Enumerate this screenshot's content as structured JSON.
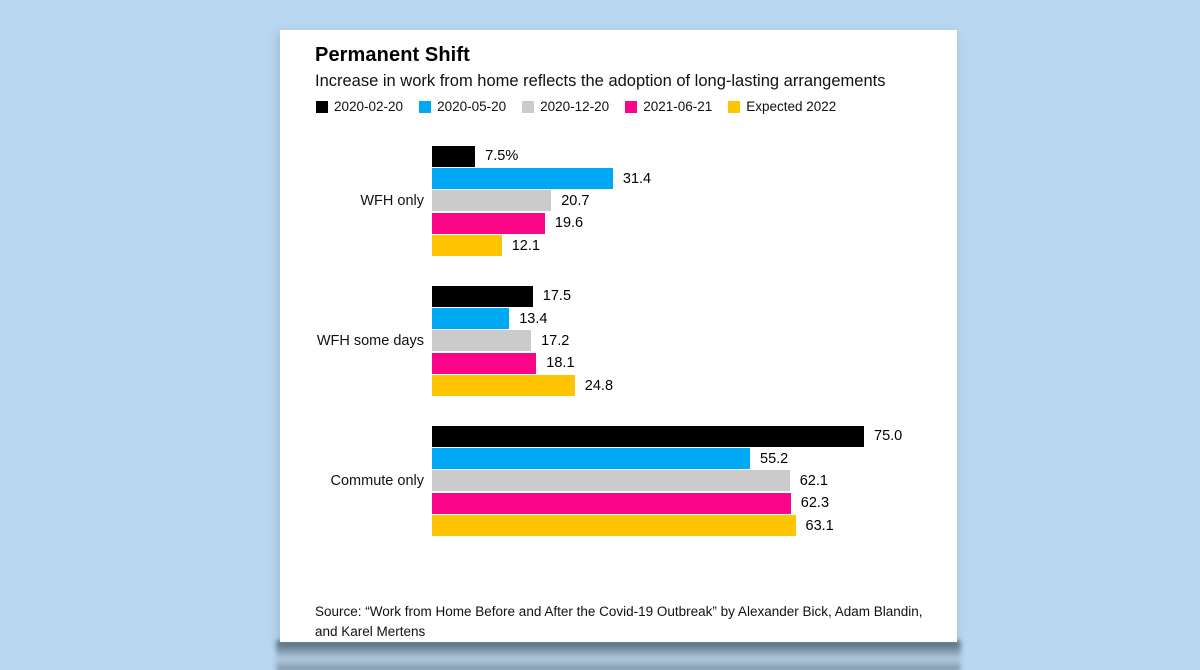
{
  "chart_data": {
    "type": "bar",
    "orientation": "horizontal",
    "title": "Permanent Shift",
    "subtitle": "Increase in work from home reflects the adoption of long-lasting arrangements",
    "legend_position": "top",
    "grid": false,
    "xlim": [
      0,
      78
    ],
    "categories": [
      "WFH only",
      "WFH some days",
      "Commute only"
    ],
    "series": [
      {
        "name": "2020-02-20",
        "color": "#000000",
        "values": [
          7.5,
          17.5,
          75.0
        ],
        "labels": [
          "7.5%",
          "17.5",
          "75.0"
        ]
      },
      {
        "name": "2020-05-20",
        "color": "#00a9f4",
        "values": [
          31.4,
          13.4,
          55.2
        ],
        "labels": [
          "31.4",
          "13.4",
          "55.2"
        ]
      },
      {
        "name": "2020-12-20",
        "color": "#cbcbcb",
        "values": [
          20.7,
          17.2,
          62.1
        ],
        "labels": [
          "20.7",
          "17.2",
          "62.1"
        ]
      },
      {
        "name": "2021-06-21",
        "color": "#fc0689",
        "values": [
          19.6,
          18.1,
          62.3
        ],
        "labels": [
          "19.6",
          "18.1",
          "62.3"
        ]
      },
      {
        "name": "Expected 2022",
        "color": "#ffc402",
        "values": [
          12.1,
          24.8,
          63.1
        ],
        "labels": [
          "12.1",
          "24.8",
          "63.1"
        ]
      }
    ],
    "source_lines": [
      "Source: “Work from Home Before and After the Covid-19 Outbreak” by Alexander Bick, Adam Blandin,",
      "and Karel Mertens"
    ]
  }
}
